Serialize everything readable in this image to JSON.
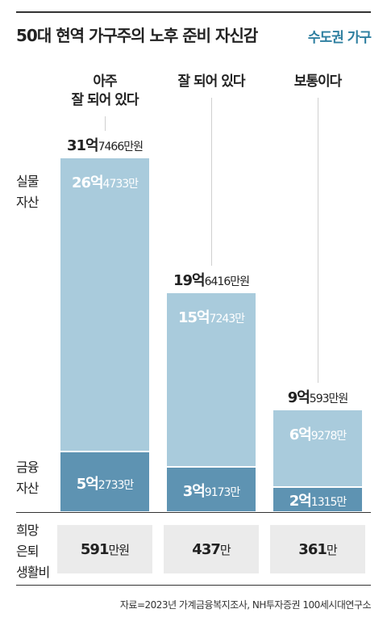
{
  "title": "50대 현역 가구주의 노후 준비 자신감",
  "subtitle": "수도권 가구",
  "row_labels": {
    "real_estate": [
      "실물",
      "자산"
    ],
    "financial": [
      "금융",
      "자산"
    ],
    "retirement": [
      "희망",
      "은퇴",
      "생활비"
    ]
  },
  "source": "자료=2023년 가계금융복지조사, NH투자증권 100세시대연구소",
  "chart_data": {
    "type": "bar",
    "stacked": true,
    "unit": "만원",
    "categories": [
      [
        "아주",
        "잘 되어 있다"
      ],
      [
        "잘 되어 있다"
      ],
      [
        "보통이다"
      ]
    ],
    "series": [
      {
        "name": "금융 자산",
        "values": [
          52733,
          39173,
          21315
        ]
      },
      {
        "name": "실물 자산",
        "values": [
          264733,
          157243,
          69278
        ]
      }
    ],
    "totals": [
      317466,
      196416,
      90593
    ],
    "labels": {
      "totals": [
        {
          "big": "31억",
          "small": "7466만원"
        },
        {
          "big": "19억",
          "small": "6416만원"
        },
        {
          "big": "9억",
          "small": "593만원"
        }
      ],
      "real_estate": [
        {
          "big": "26억",
          "small": "4733만"
        },
        {
          "big": "15억",
          "small": "7243만"
        },
        {
          "big": "6억",
          "small": "9278만"
        }
      ],
      "financial": [
        {
          "big": "5억",
          "small": "2733만"
        },
        {
          "big": "3억",
          "small": "9173만"
        },
        {
          "big": "2억",
          "small": "1315만"
        }
      ]
    },
    "retirement_living_cost": [
      591,
      437,
      361
    ],
    "retirement_labels": [
      {
        "big": "591",
        "small": "만원"
      },
      {
        "big": "437",
        "small": "만"
      },
      {
        "big": "361",
        "small": "만"
      }
    ],
    "colors": {
      "real_estate": "#a9cbdc",
      "financial": "#5e93b2",
      "retirement_box": "#ebebeb"
    },
    "grid": false,
    "legend": "none"
  }
}
